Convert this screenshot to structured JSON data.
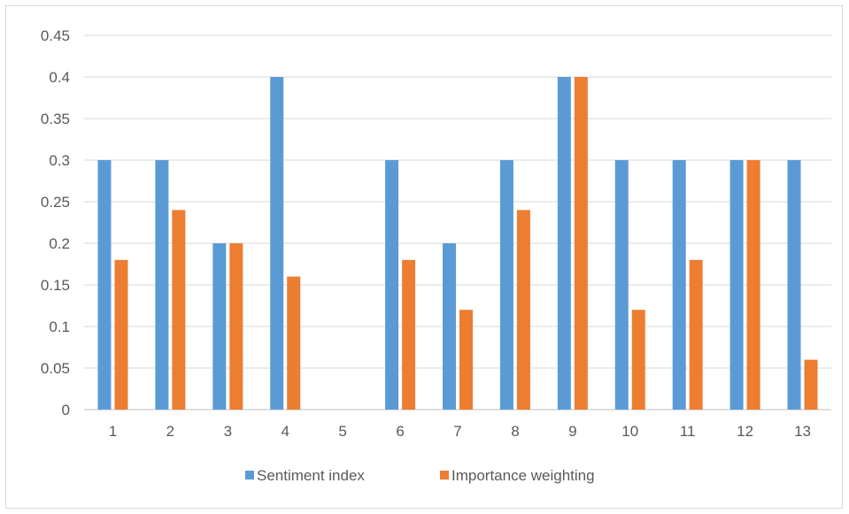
{
  "chart_data": {
    "type": "bar",
    "categories": [
      "1",
      "2",
      "3",
      "4",
      "5",
      "6",
      "7",
      "8",
      "9",
      "10",
      "11",
      "12",
      "13"
    ],
    "series": [
      {
        "name": "Sentiment index",
        "color": "#5b9bd5",
        "values": [
          0.3,
          0.3,
          0.2,
          0.4,
          0,
          0.3,
          0.2,
          0.3,
          0.4,
          0.3,
          0.3,
          0.3,
          0.3
        ]
      },
      {
        "name": "Importance weighting",
        "color": "#ed7d31",
        "values": [
          0.18,
          0.24,
          0.2,
          0.16,
          0,
          0.18,
          0.12,
          0.24,
          0.4,
          0.12,
          0.18,
          0.3,
          0.06
        ]
      }
    ],
    "yticks": [
      "0",
      "0.05",
      "0.1",
      "0.15",
      "0.2",
      "0.25",
      "0.3",
      "0.35",
      "0.4",
      "0.45"
    ],
    "ylim": [
      0,
      0.45
    ],
    "grid": true,
    "legend": "bottom"
  }
}
